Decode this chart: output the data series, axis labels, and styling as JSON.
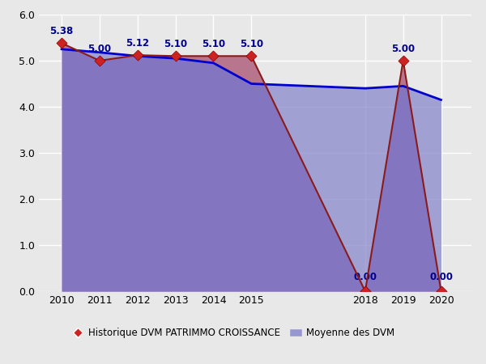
{
  "patrimmo_years": [
    2010,
    2011,
    2012,
    2013,
    2014,
    2015,
    2018,
    2019,
    2020
  ],
  "patrimmo_values": [
    5.38,
    5.0,
    5.12,
    5.1,
    5.1,
    5.1,
    0.0,
    5.0,
    0.0
  ],
  "moyenne_years": [
    2010,
    2011,
    2012,
    2013,
    2014,
    2015,
    2018,
    2019,
    2020
  ],
  "moyenne_values": [
    5.25,
    5.18,
    5.1,
    5.05,
    4.95,
    4.5,
    4.4,
    4.45,
    4.15
  ],
  "patrimmo_line_color": "#8B1A1A",
  "patrimmo_fill_color": "#7B3FA0",
  "patrimmo_fill_alpha": 1.0,
  "moyenne_line_color": "#0000CD",
  "moyenne_fill_color": "#8888CC",
  "moyenne_fill_alpha": 0.75,
  "overlap_fill_color": "#CC8888",
  "overlap_fill_alpha": 0.75,
  "marker_face_color": "#CC2222",
  "marker_edge_color": "#8B0000",
  "marker_size": 7,
  "ylim": [
    0,
    6.0
  ],
  "yticks": [
    0.0,
    1.0,
    2.0,
    3.0,
    4.0,
    5.0,
    6.0
  ],
  "background_color": "#E8E8E8",
  "plot_bg_color": "#E8E8E8",
  "grid_color": "#FFFFFF",
  "label_patrimmo": "Historique DVM PATRIMMO CROISSANCE",
  "label_moyenne": "Moyenne des DVM",
  "value_label_color": "#00008B",
  "value_label_fontsize": 8.5
}
